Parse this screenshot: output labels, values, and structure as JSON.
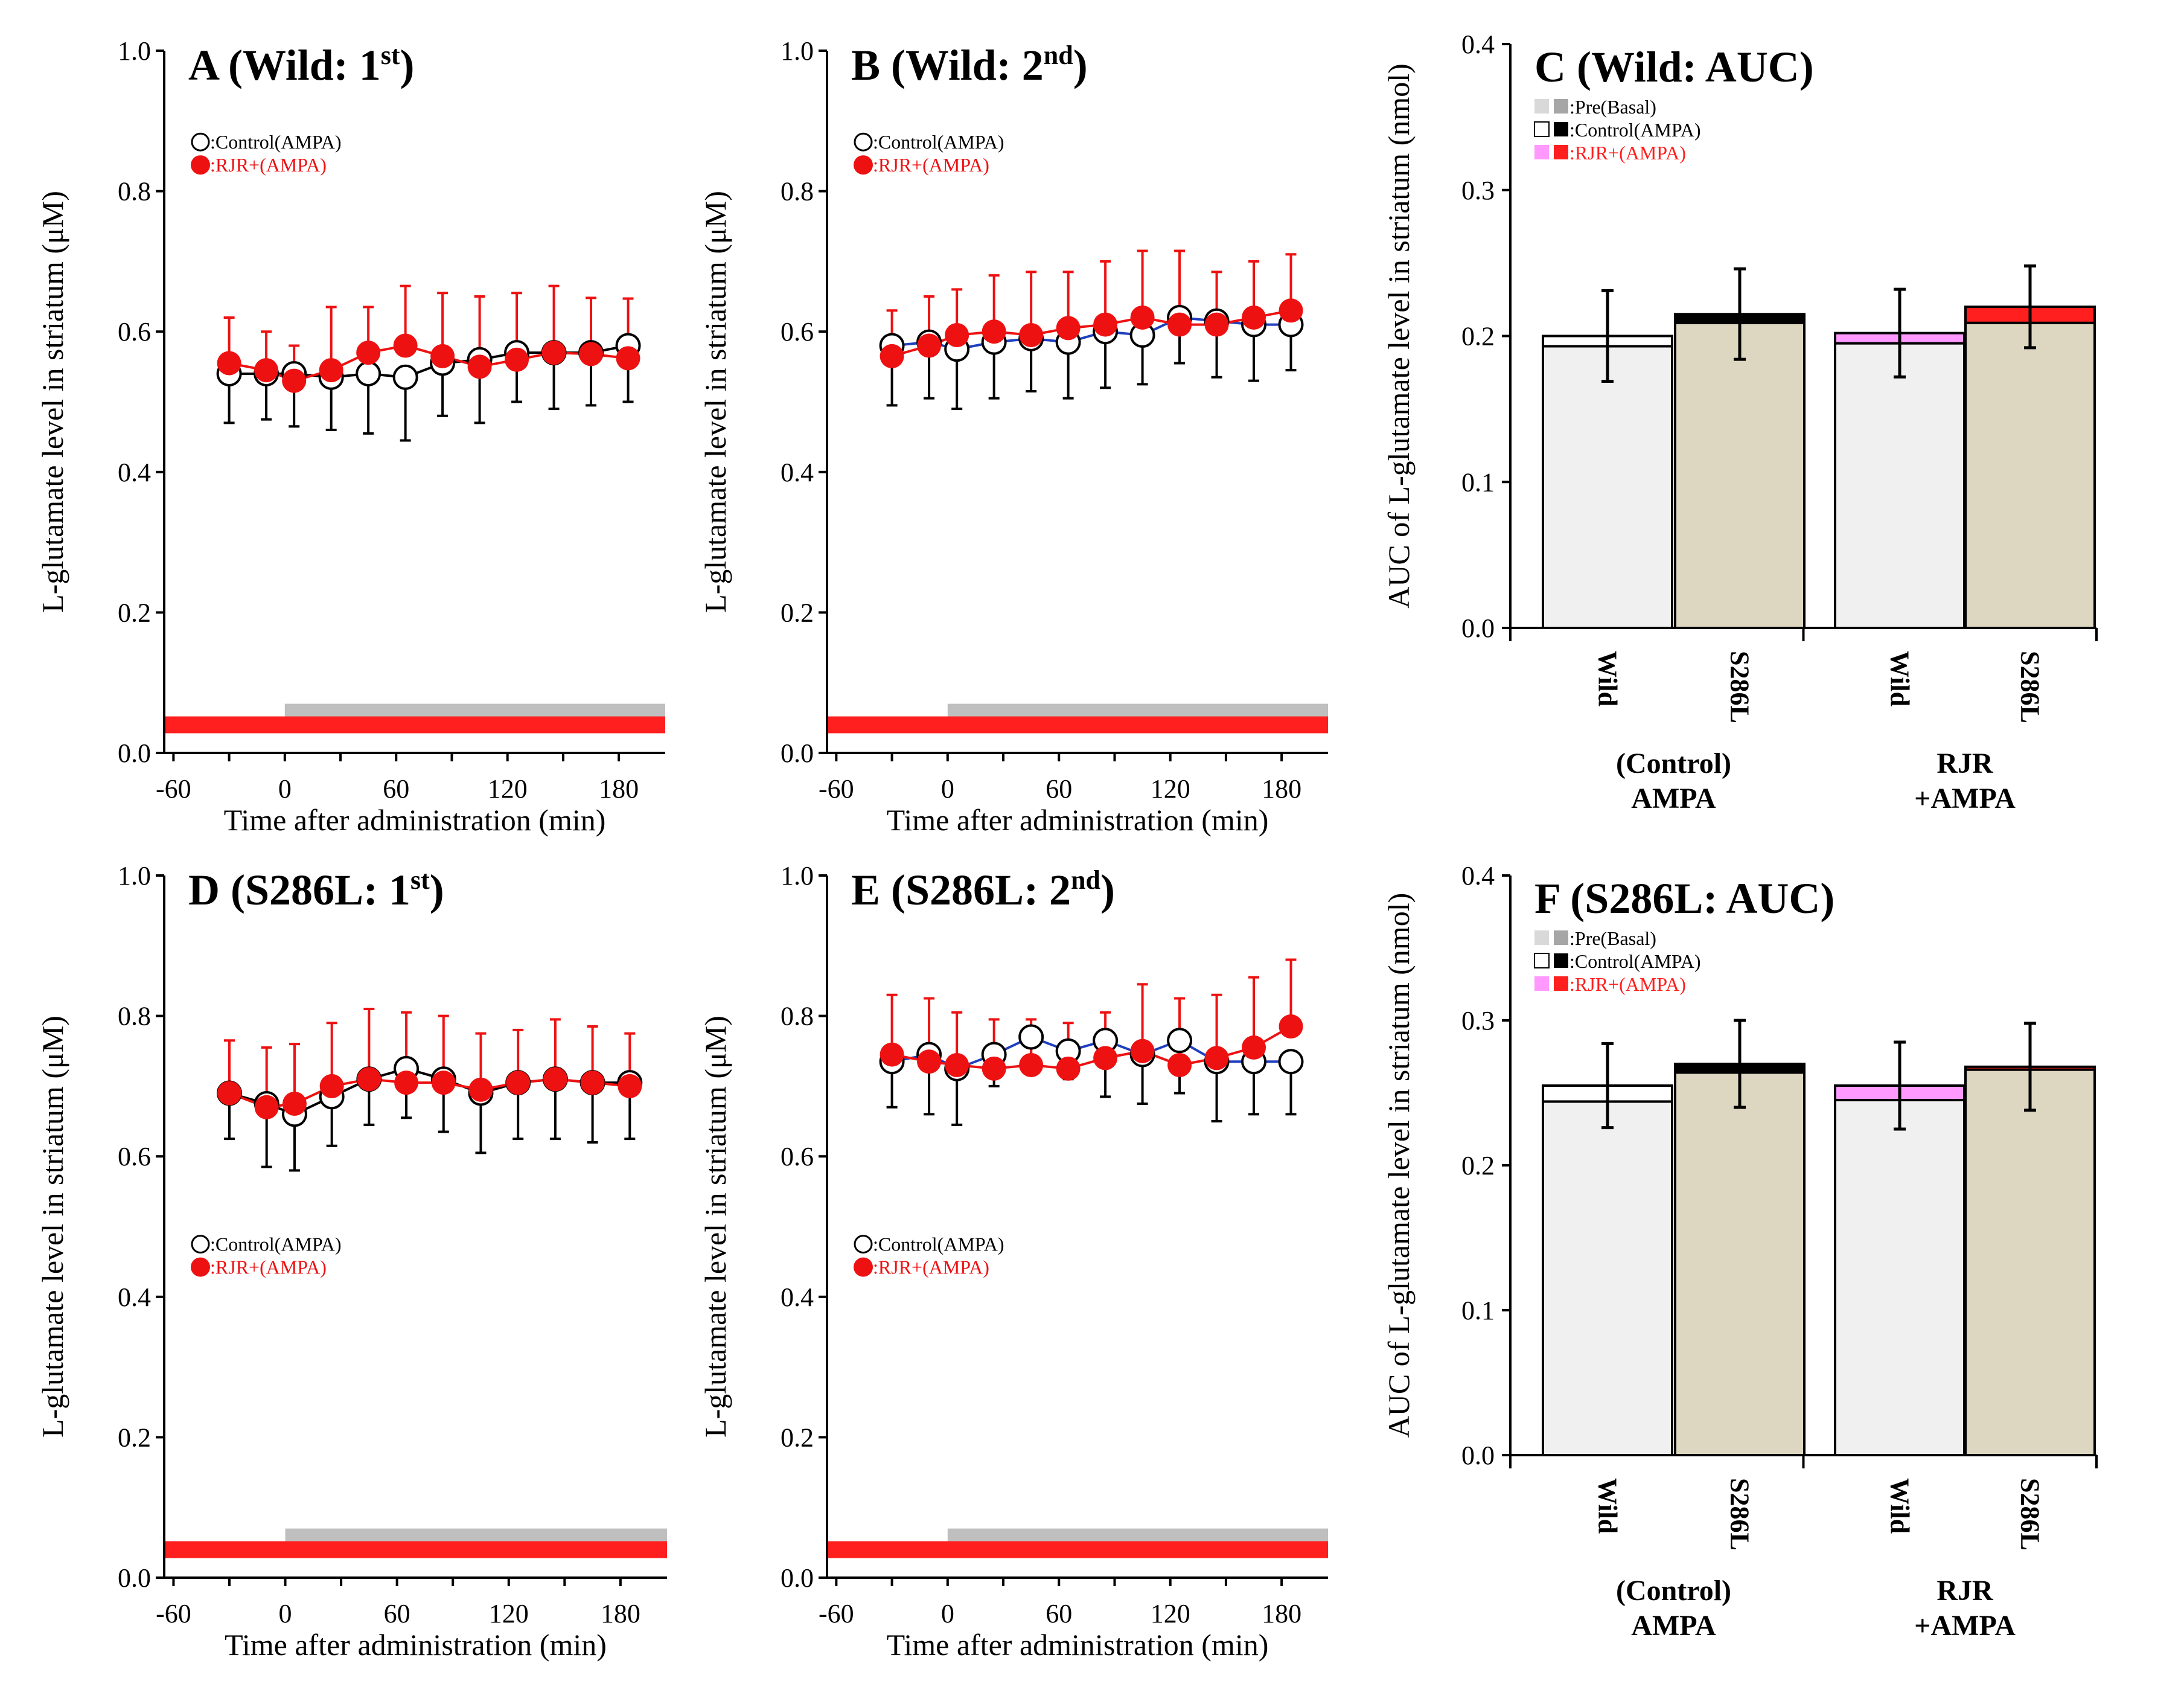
{
  "figure": {
    "time_xlabel": "Time after administration (min)",
    "time_ylabel": "L-glutamate level in striatum (μM)",
    "auc_ylabel": "AUC of L-glutamate level in striatum (nmol)",
    "time_legend": [
      ":Control(AMPA)",
      ":RJR+(AMPA)"
    ],
    "auc_legend": [
      ":Pre(Basal)",
      ":Control(AMPA)",
      ":RJR+(AMPA)"
    ],
    "auc_groups": [
      [
        "(Control)",
        "AMPA"
      ],
      [
        "RJR",
        "+AMPA"
      ]
    ],
    "auc_categories": [
      "Wild",
      "S286L"
    ],
    "colors": {
      "control_marker": "#ffffff",
      "rjr_marker": "#ee1111",
      "rjr_bar": "#ff1f1f",
      "agonist_bar": "#bfbfbf",
      "wild_base": "#f0f0f0",
      "s286l_base": "#ddd6c0",
      "pre_light": "#d9d9d9",
      "pre_dark": "#a6a6a6",
      "pink": "#ff99ff",
      "blue_line": "#1f3fbf"
    }
  },
  "chart_data": [
    {
      "panel": "A",
      "type": "line",
      "title_main": "A (Wild:  1",
      "title_sup": "st",
      "title_end": ")",
      "xticks": [
        -60,
        0,
        60,
        120,
        180
      ],
      "yticks": [
        "0.0",
        "0.2",
        "0.4",
        "0.6",
        "0.8",
        "1.0"
      ],
      "xlim": [
        -65,
        205
      ],
      "ylim": [
        0,
        1.0
      ],
      "x": [
        -30,
        -10,
        5,
        25,
        45,
        65,
        85,
        105,
        125,
        145,
        165,
        185
      ],
      "legend_pos": "top-left",
      "connect": "black",
      "series": [
        {
          "name": "Control(AMPA)",
          "values": [
            0.54,
            0.54,
            0.54,
            0.535,
            0.54,
            0.535,
            0.555,
            0.56,
            0.57,
            0.57,
            0.57,
            0.58
          ],
          "err": [
            0.07,
            0.065,
            0.075,
            0.075,
            0.085,
            0.09,
            0.075,
            0.09,
            0.07,
            0.08,
            0.075,
            0.08
          ]
        },
        {
          "name": "RJR+(AMPA)",
          "values": [
            0.555,
            0.545,
            0.53,
            0.545,
            0.57,
            0.58,
            0.565,
            0.55,
            0.56,
            0.57,
            0.568,
            0.562
          ],
          "err": [
            0.065,
            0.055,
            0.05,
            0.09,
            0.065,
            0.085,
            0.09,
            0.1,
            0.095,
            0.095,
            0.08,
            0.085
          ]
        }
      ]
    },
    {
      "panel": "B",
      "type": "line",
      "title_main": "B (Wild:  2",
      "title_sup": "nd",
      "title_end": ")",
      "xticks": [
        -60,
        0,
        60,
        120,
        180
      ],
      "yticks": [
        "0.0",
        "0.2",
        "0.4",
        "0.6",
        "0.8",
        "1.0"
      ],
      "xlim": [
        -65,
        205
      ],
      "ylim": [
        0,
        1.0
      ],
      "x": [
        -30,
        -10,
        5,
        25,
        45,
        65,
        85,
        105,
        125,
        145,
        165,
        185
      ],
      "legend_pos": "top-left",
      "connect": "blue",
      "series": [
        {
          "name": "Control(AMPA)",
          "values": [
            0.58,
            0.585,
            0.575,
            0.585,
            0.59,
            0.585,
            0.6,
            0.595,
            0.62,
            0.615,
            0.61,
            0.61
          ],
          "err": [
            0.085,
            0.08,
            0.085,
            0.08,
            0.075,
            0.08,
            0.08,
            0.07,
            0.065,
            0.08,
            0.08,
            0.065
          ]
        },
        {
          "name": "RJR+(AMPA)",
          "values": [
            0.565,
            0.58,
            0.595,
            0.6,
            0.595,
            0.605,
            0.61,
            0.62,
            0.61,
            0.61,
            0.62,
            0.63
          ],
          "err": [
            0.065,
            0.07,
            0.065,
            0.08,
            0.09,
            0.08,
            0.09,
            0.095,
            0.105,
            0.075,
            0.08,
            0.08
          ]
        }
      ]
    },
    {
      "panel": "D",
      "type": "line",
      "title_main": "D (S286L:  1",
      "title_sup": "st",
      "title_end": ")",
      "xticks": [
        -60,
        0,
        60,
        120,
        180
      ],
      "yticks": [
        "0.0",
        "0.2",
        "0.4",
        "0.6",
        "0.8",
        "1.0"
      ],
      "xlim": [
        -65,
        205
      ],
      "ylim": [
        0,
        1.0
      ],
      "x": [
        -30,
        -10,
        5,
        25,
        45,
        65,
        85,
        105,
        125,
        145,
        165,
        185
      ],
      "legend_pos": "middle-left",
      "connect": "black",
      "series": [
        {
          "name": "Control(AMPA)",
          "values": [
            0.69,
            0.675,
            0.66,
            0.685,
            0.71,
            0.725,
            0.71,
            0.69,
            0.705,
            0.71,
            0.705,
            0.705
          ],
          "err": [
            0.065,
            0.09,
            0.08,
            0.07,
            0.065,
            0.07,
            0.075,
            0.085,
            0.08,
            0.085,
            0.085,
            0.08
          ]
        },
        {
          "name": "RJR+(AMPA)",
          "values": [
            0.69,
            0.67,
            0.675,
            0.7,
            0.71,
            0.705,
            0.705,
            0.695,
            0.705,
            0.71,
            0.705,
            0.7
          ],
          "err": [
            0.075,
            0.085,
            0.085,
            0.09,
            0.1,
            0.1,
            0.095,
            0.08,
            0.075,
            0.085,
            0.08,
            0.075
          ]
        }
      ]
    },
    {
      "panel": "E",
      "type": "line",
      "title_main": "E (S286L:  2",
      "title_sup": "nd",
      "title_end": ")",
      "xticks": [
        -60,
        0,
        60,
        120,
        180
      ],
      "yticks": [
        "0.0",
        "0.2",
        "0.4",
        "0.6",
        "0.8",
        "1.0"
      ],
      "xlim": [
        -65,
        205
      ],
      "ylim": [
        0,
        1.0
      ],
      "x": [
        -30,
        -10,
        5,
        25,
        45,
        65,
        85,
        105,
        125,
        145,
        165,
        185
      ],
      "legend_pos": "middle-left",
      "connect": "blue",
      "series": [
        {
          "name": "Control(AMPA)",
          "values": [
            0.735,
            0.745,
            0.725,
            0.745,
            0.77,
            0.75,
            0.765,
            0.745,
            0.765,
            0.735,
            0.735,
            0.735
          ],
          "err": [
            0.065,
            0.085,
            0.08,
            0.045,
            0.05,
            0.04,
            0.08,
            0.07,
            0.075,
            0.085,
            0.075,
            0.075
          ]
        },
        {
          "name": "RJR+(AMPA)",
          "values": [
            0.745,
            0.735,
            0.73,
            0.725,
            0.73,
            0.725,
            0.74,
            0.75,
            0.73,
            0.74,
            0.755,
            0.785
          ],
          "err": [
            0.085,
            0.09,
            0.075,
            0.07,
            0.065,
            0.065,
            0.065,
            0.095,
            0.095,
            0.09,
            0.1,
            0.095
          ]
        }
      ]
    },
    {
      "panel": "C",
      "type": "bar",
      "title": "C (Wild: AUC)",
      "yticks": [
        "0.0",
        "0.1",
        "0.2",
        "0.3",
        "0.4"
      ],
      "ylim": [
        0,
        0.4
      ],
      "bars": [
        {
          "group": 0,
          "category": "Wild",
          "base": 0.193,
          "top": 0.2,
          "err": 0.031,
          "cap": "white"
        },
        {
          "group": 0,
          "category": "S286L",
          "base": 0.209,
          "top": 0.215,
          "err": 0.031,
          "cap": "black"
        },
        {
          "group": 1,
          "category": "Wild",
          "base": 0.195,
          "top": 0.202,
          "err": 0.03,
          "cap": "pink"
        },
        {
          "group": 1,
          "category": "S286L",
          "base": 0.209,
          "top": 0.22,
          "err": 0.028,
          "cap": "red"
        }
      ]
    },
    {
      "panel": "F",
      "type": "bar",
      "title": "F (S286L: AUC)",
      "yticks": [
        "0.0",
        "0.1",
        "0.2",
        "0.3",
        "0.4"
      ],
      "ylim": [
        0,
        0.4
      ],
      "bars": [
        {
          "group": 0,
          "category": "Wild",
          "base": 0.244,
          "top": 0.255,
          "err": 0.029,
          "cap": "white"
        },
        {
          "group": 0,
          "category": "S286L",
          "base": 0.264,
          "top": 0.27,
          "err": 0.03,
          "cap": "black"
        },
        {
          "group": 1,
          "category": "Wild",
          "base": 0.245,
          "top": 0.255,
          "err": 0.03,
          "cap": "pink"
        },
        {
          "group": 1,
          "category": "S286L",
          "base": 0.266,
          "top": 0.268,
          "err": 0.03,
          "cap": "red"
        }
      ]
    }
  ]
}
